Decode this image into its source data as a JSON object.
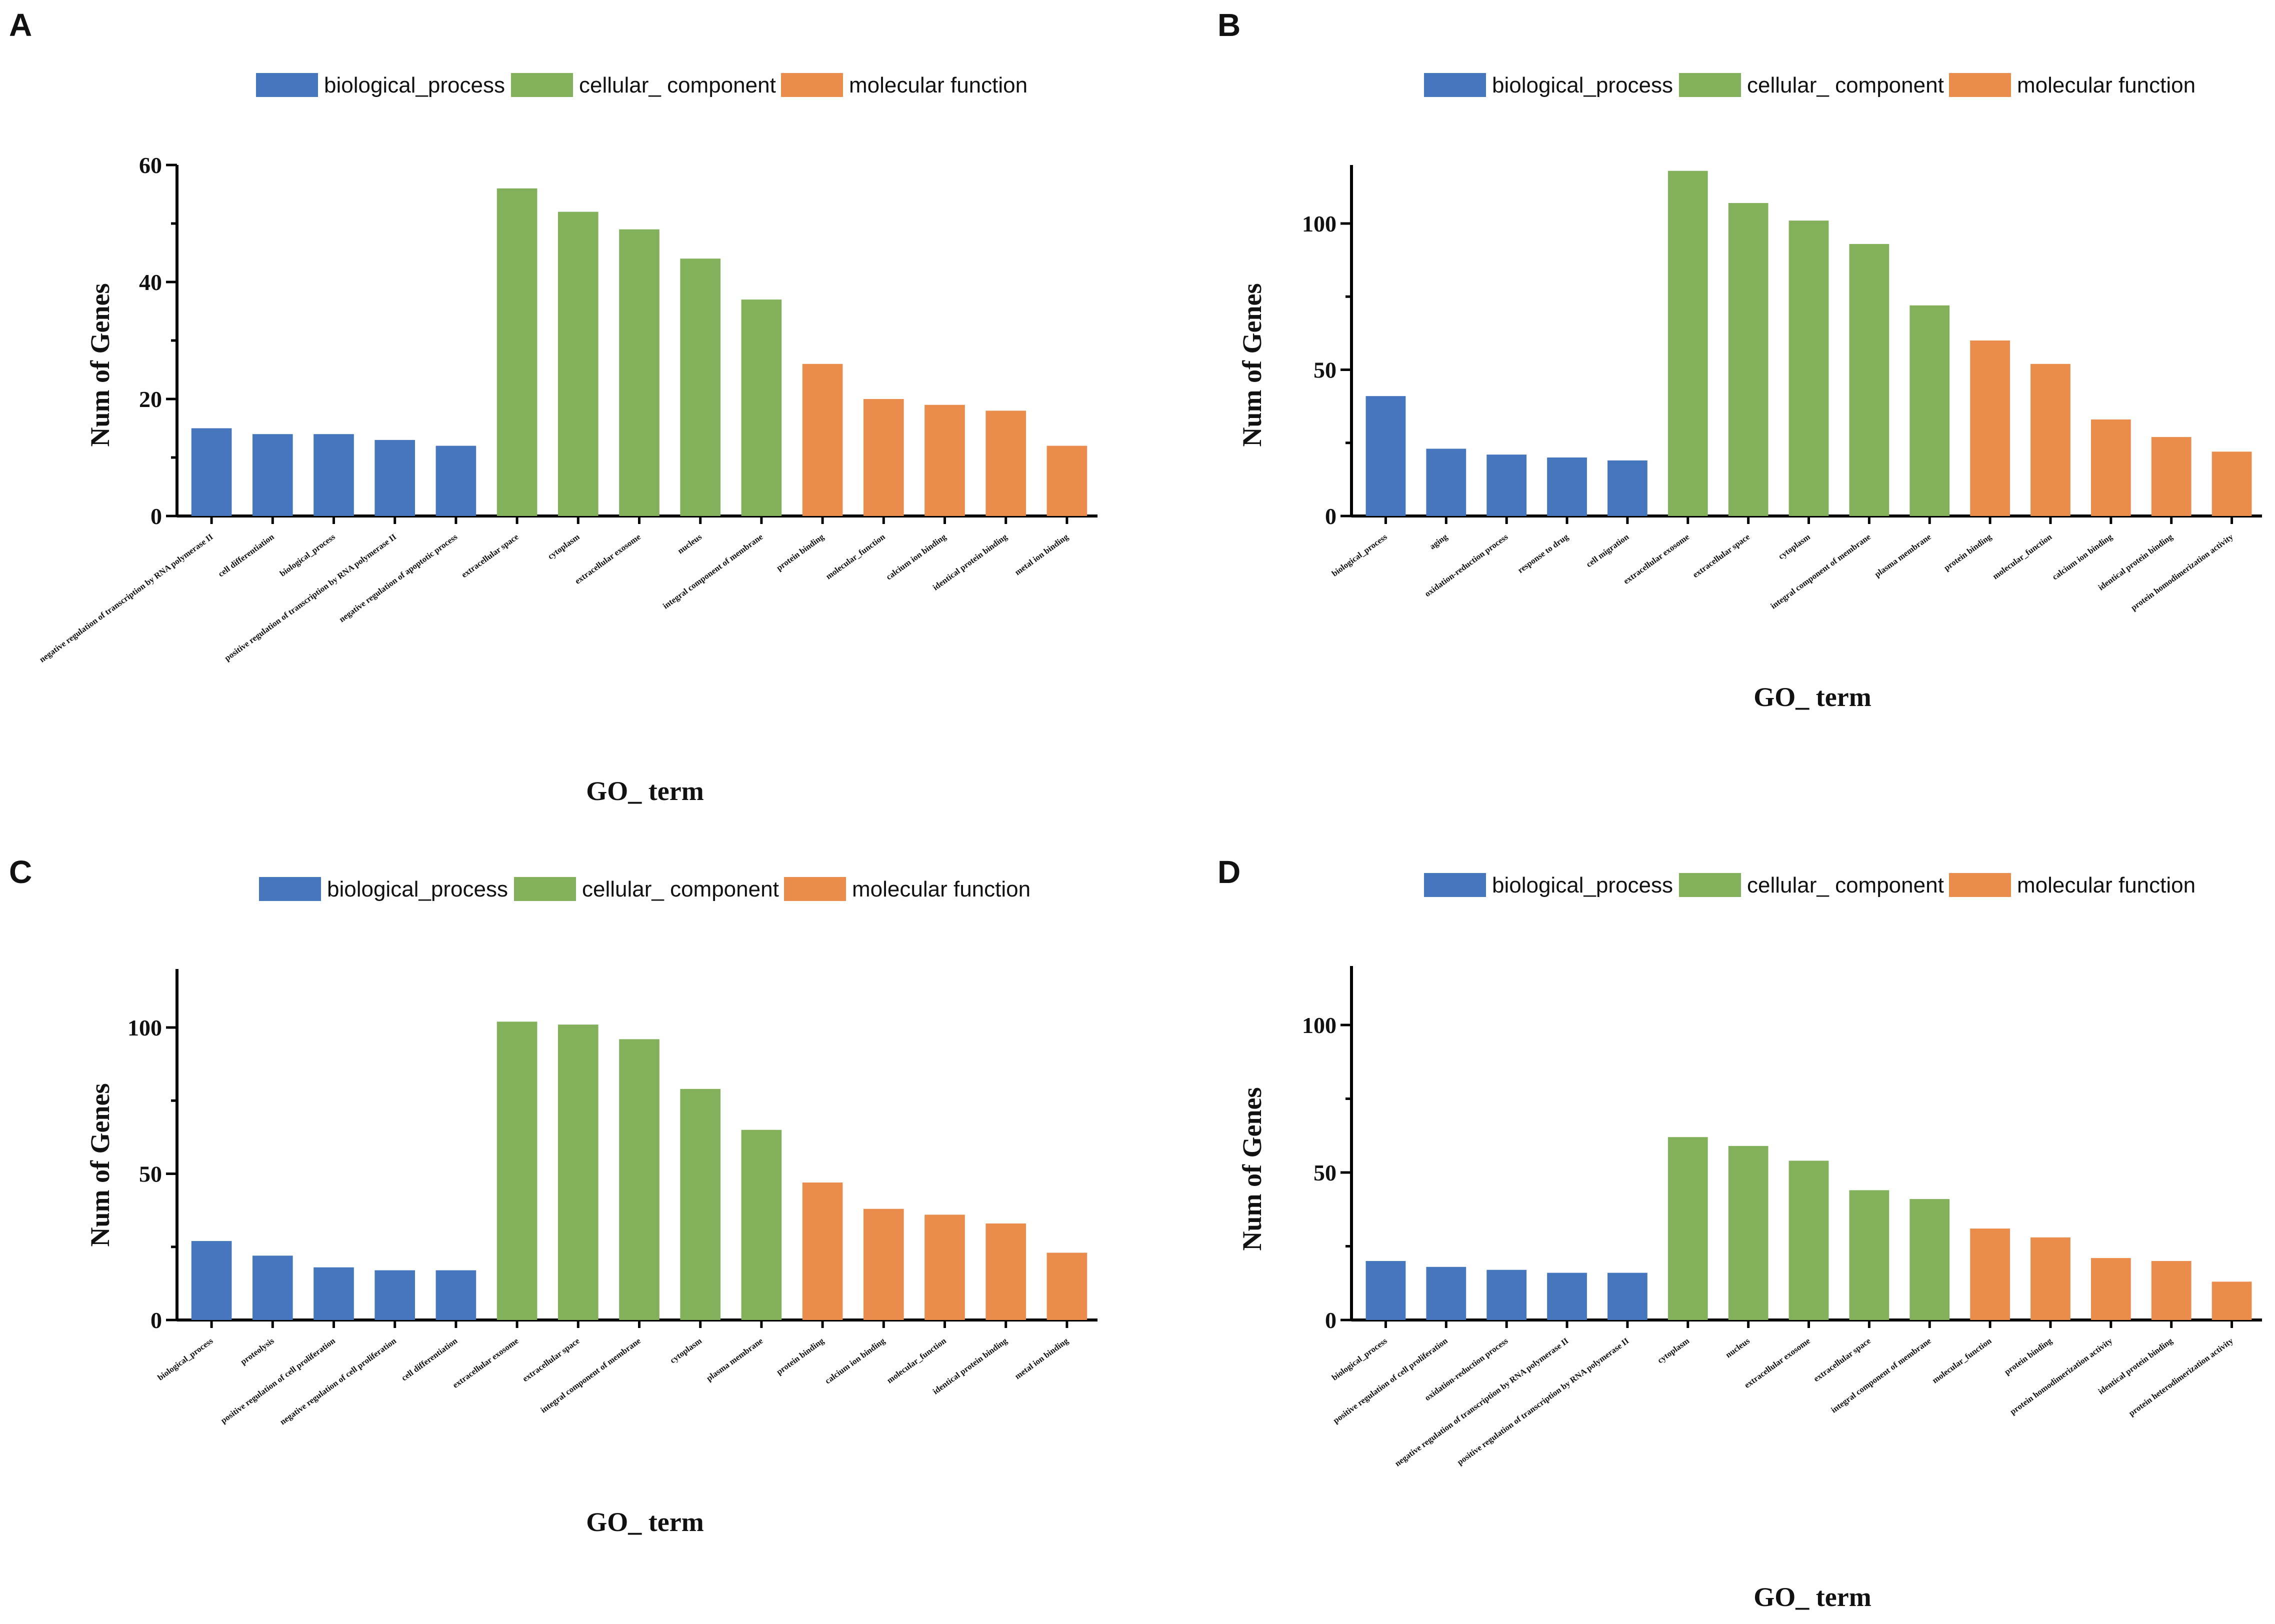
{
  "colors": {
    "biological_process": "#4677be",
    "cellular_component": "#82b05b",
    "molecular_function": "#ea8c4b"
  },
  "legend": {
    "biological_process": "biological_process",
    "cellular_component": "cellular_ component",
    "molecular_function": "molecular function"
  },
  "chart_data": [
    {
      "panel": "A",
      "type": "bar",
      "xlabel": "GO_ term",
      "ylabel": "Num of Genes",
      "ylim": [
        0,
        60
      ],
      "yticks": [
        0,
        20,
        40,
        60
      ],
      "categories": [
        "negative regulation of transcription by RNA polymerase II",
        "cell differentiation",
        "biological_process",
        "positive regulation of transcription by RNA polymerase II",
        "negative regulation of apoptotic process",
        "extracellular space",
        "cytoplasm",
        "extracellular exosome",
        "nucleus",
        "integral component of membrane",
        "protein binding",
        "molecular_function",
        "calcium ion binding",
        "identical protein binding",
        "metal ion binding"
      ],
      "values": [
        15,
        14,
        14,
        13,
        12,
        56,
        52,
        49,
        44,
        37,
        26,
        20,
        19,
        18,
        12
      ],
      "groups": [
        "biological_process",
        "biological_process",
        "biological_process",
        "biological_process",
        "biological_process",
        "cellular_component",
        "cellular_component",
        "cellular_component",
        "cellular_component",
        "cellular_component",
        "molecular_function",
        "molecular_function",
        "molecular_function",
        "molecular_function",
        "molecular_function"
      ]
    },
    {
      "panel": "B",
      "type": "bar",
      "xlabel": "GO_ term",
      "ylabel": "Num of Genes",
      "ylim": [
        0,
        120
      ],
      "yticks": [
        0,
        50,
        100
      ],
      "categories": [
        "biological_process",
        "aging",
        "oxidation-reduction process",
        "response to drug",
        "cell migration",
        "extracellular exosome",
        "extracellular space",
        "cytoplasm",
        "integral component of membrane",
        "plasma membrane",
        "protein binding",
        "molecular_function",
        "calcium ion binding",
        "identical protein binding",
        "protein homodimerization activity"
      ],
      "values": [
        41,
        23,
        21,
        20,
        19,
        118,
        107,
        101,
        93,
        72,
        60,
        52,
        33,
        27,
        22
      ],
      "groups": [
        "biological_process",
        "biological_process",
        "biological_process",
        "biological_process",
        "biological_process",
        "cellular_component",
        "cellular_component",
        "cellular_component",
        "cellular_component",
        "cellular_component",
        "molecular_function",
        "molecular_function",
        "molecular_function",
        "molecular_function",
        "molecular_function"
      ]
    },
    {
      "panel": "C",
      "type": "bar",
      "xlabel": "GO_ term",
      "ylabel": "Num of Genes",
      "ylim": [
        0,
        120
      ],
      "yticks": [
        0,
        50,
        100
      ],
      "categories": [
        "biological_process",
        "proteolysis",
        "positive regulation of cell proliferation",
        "negative regulation of cell proliferation",
        "cell differentiation",
        "extracellular exosome",
        "extracellular space",
        "integral component of membrane",
        "cytoplasm",
        "plasma membrane",
        "protein binding",
        "calcium ion binding",
        "molecular_function",
        "identical protein binding",
        "metal ion binding"
      ],
      "values": [
        27,
        22,
        18,
        17,
        17,
        102,
        101,
        96,
        79,
        65,
        47,
        38,
        36,
        33,
        23
      ],
      "groups": [
        "biological_process",
        "biological_process",
        "biological_process",
        "biological_process",
        "biological_process",
        "cellular_component",
        "cellular_component",
        "cellular_component",
        "cellular_component",
        "cellular_component",
        "molecular_function",
        "molecular_function",
        "molecular_function",
        "molecular_function",
        "molecular_function"
      ]
    },
    {
      "panel": "D",
      "type": "bar",
      "xlabel": "GO_ term",
      "ylabel": "Num of Genes",
      "ylim": [
        0,
        120
      ],
      "yticks": [
        0,
        50,
        100
      ],
      "categories": [
        "biological_process",
        "positive regulation of cell proliferation",
        "oxidation-reduction process",
        "negative regulation of transcription by RNA polymerase II",
        "positive regulation of transcription by RNA polymerase II",
        "cytoplasm",
        "nucleus",
        "extracellular exosome",
        "extracellular space",
        "integral component of membrane",
        "molecular_function",
        "protein binding",
        "protein homodimerization activity",
        "identical protein binding",
        "protein heterodimerization activity"
      ],
      "values": [
        20,
        18,
        17,
        16,
        16,
        62,
        59,
        54,
        44,
        41,
        31,
        28,
        21,
        20,
        13
      ],
      "groups": [
        "biological_process",
        "biological_process",
        "biological_process",
        "biological_process",
        "biological_process",
        "cellular_component",
        "cellular_component",
        "cellular_component",
        "cellular_component",
        "cellular_component",
        "molecular_function",
        "molecular_function",
        "molecular_function",
        "molecular_function",
        "molecular_function"
      ]
    }
  ]
}
